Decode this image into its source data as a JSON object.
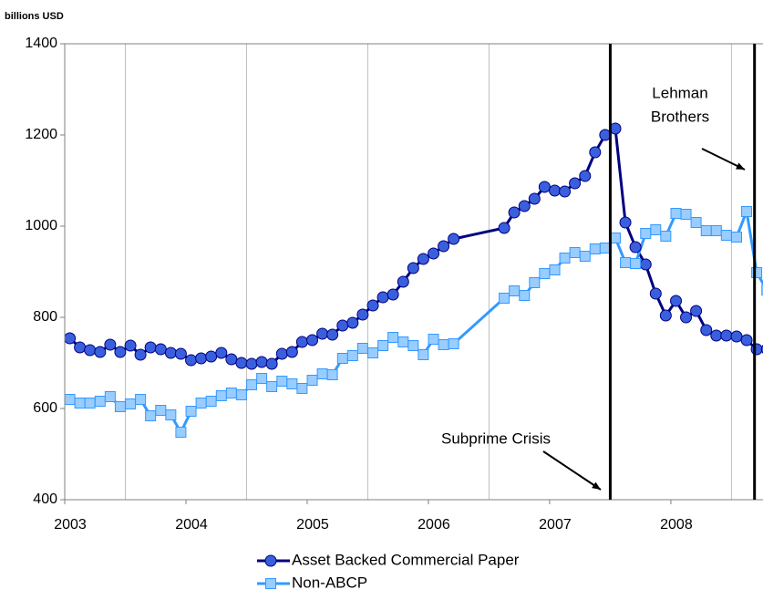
{
  "chart_data": {
    "type": "line",
    "unit_label": "billions USD",
    "x": [
      2003.042,
      2003.125,
      2003.208,
      2003.292,
      2003.375,
      2003.458,
      2003.542,
      2003.625,
      2003.708,
      2003.792,
      2003.875,
      2003.958,
      2004.042,
      2004.125,
      2004.208,
      2004.292,
      2004.375,
      2004.458,
      2004.542,
      2004.625,
      2004.708,
      2004.792,
      2004.875,
      2004.958,
      2005.042,
      2005.125,
      2005.208,
      2005.292,
      2005.375,
      2005.458,
      2005.542,
      2005.625,
      2005.708,
      2005.792,
      2005.875,
      2005.958,
      2006.042,
      2006.125,
      2006.208,
      2006.625,
      2006.708,
      2006.792,
      2006.875,
      2006.958,
      2007.042,
      2007.125,
      2007.208,
      2007.292,
      2007.375,
      2007.458,
      2007.542,
      2007.625,
      2007.708,
      2007.792,
      2007.875,
      2007.958,
      2008.042,
      2008.125,
      2008.208,
      2008.292,
      2008.375,
      2008.458,
      2008.542,
      2008.625,
      2008.708,
      2008.792
    ],
    "series": [
      {
        "name": "Asset Backed Commercial Paper",
        "color": "#000080",
        "marker_fill": "#3a5fdd",
        "marker": "circle",
        "values": [
          754,
          734,
          728,
          724,
          740,
          724,
          738,
          718,
          734,
          730,
          722,
          720,
          706,
          710,
          714,
          722,
          708,
          700,
          698,
          702,
          698,
          720,
          724,
          746,
          750,
          764,
          762,
          782,
          788,
          806,
          826,
          844,
          850,
          878,
          908,
          928,
          940,
          956,
          972,
          996,
          1030,
          1044,
          1060,
          1086,
          1078,
          1076,
          1094,
          1110,
          1162,
          1200,
          1214,
          1008,
          954,
          916,
          852,
          804,
          836,
          800,
          814,
          772,
          760,
          760,
          758,
          750,
          730,
          730
        ]
      },
      {
        "name": "Non-ABCP",
        "color": "#3399ff",
        "marker_fill": "#99ccff",
        "marker": "square",
        "values": [
          620,
          612,
          612,
          616,
          626,
          604,
          610,
          620,
          584,
          596,
          586,
          548,
          594,
          612,
          616,
          628,
          634,
          630,
          652,
          666,
          648,
          660,
          654,
          644,
          662,
          676,
          674,
          710,
          716,
          732,
          722,
          738,
          756,
          746,
          738,
          718,
          752,
          740,
          742,
          842,
          858,
          848,
          876,
          896,
          904,
          930,
          942,
          934,
          950,
          952,
          974,
          920,
          918,
          984,
          992,
          978,
          1028,
          1026,
          1008,
          990,
          990,
          980,
          976,
          1032,
          898,
          860
        ]
      }
    ],
    "xlim": [
      2003,
      2008.76
    ],
    "xticks": [
      2003,
      2004,
      2005,
      2006,
      2007,
      2008
    ],
    "xgrid": [
      2003.5,
      2004.5,
      2005.5,
      2006.5,
      2007.5,
      2008.5
    ],
    "ylim": [
      400,
      1400
    ],
    "yticks": [
      400,
      600,
      800,
      1000,
      1200,
      1400
    ],
    "events": [
      {
        "x": 2007.5,
        "label": [
          "Subprime Crisis"
        ]
      },
      {
        "x": 2008.69,
        "label": [
          "Lehman",
          "Brothers"
        ]
      }
    ]
  }
}
